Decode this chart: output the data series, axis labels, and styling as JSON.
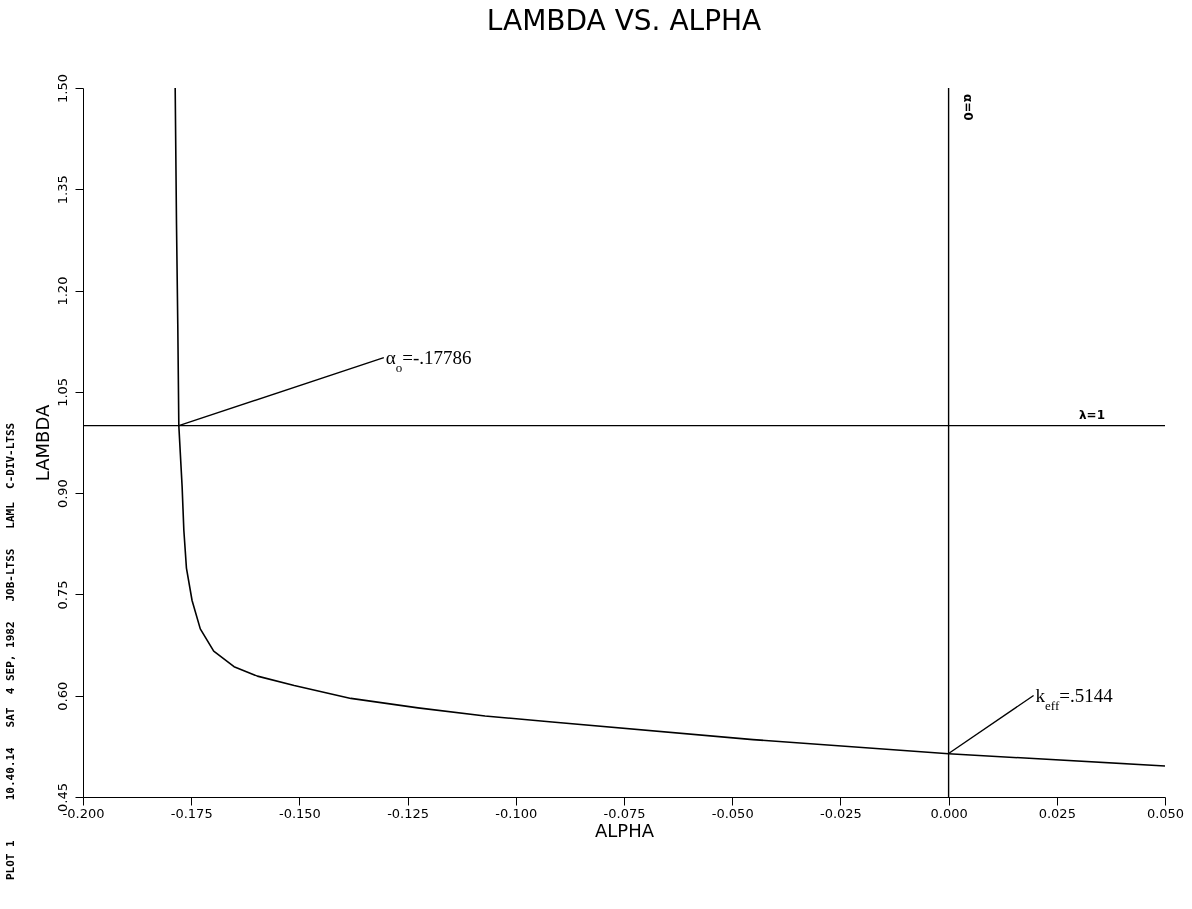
{
  "chart_data": {
    "type": "line",
    "title": "LAMBDA VS. ALPHA",
    "xlabel": "ALPHA",
    "ylabel": "LAMBDA",
    "xlim": [
      -0.2,
      0.05
    ],
    "ylim": [
      0.45,
      1.5
    ],
    "xticks": [
      {
        "value": -0.2,
        "label": "-0.200"
      },
      {
        "value": -0.175,
        "label": "-0.175"
      },
      {
        "value": -0.15,
        "label": "-0.150"
      },
      {
        "value": -0.125,
        "label": "-0.125"
      },
      {
        "value": -0.1,
        "label": "-0.100"
      },
      {
        "value": -0.075,
        "label": "-0.075"
      },
      {
        "value": -0.05,
        "label": "-0.050"
      },
      {
        "value": -0.025,
        "label": "-0.025"
      },
      {
        "value": 0,
        "label": "0.000"
      },
      {
        "value": 0.025,
        "label": "0.025"
      },
      {
        "value": 0.05,
        "label": "0.050"
      }
    ],
    "yticks": [
      0.45,
      {
        "value": 0.6,
        "label": "0.60"
      },
      0.75,
      {
        "value": 0.9,
        "label": "0.90"
      },
      1.05,
      {
        "value": 1.2,
        "label": "1.20"
      },
      1.35,
      {
        "value": 1.5,
        "label": "1.50"
      }
    ],
    "series": [
      {
        "color": "#000000",
        "x": [
          -0.1787,
          -0.1784,
          -0.1781,
          -0.17786,
          -0.1771,
          -0.1767,
          -0.1761,
          -0.1748,
          -0.1729,
          -0.1698,
          -0.1651,
          -0.1597,
          -0.1512,
          -0.1381,
          -0.1226,
          -0.1071,
          -0.0916,
          -0.0452,
          0,
          0.05
        ],
        "values": [
          1.5,
          1.3,
          1.15,
          1.0,
          0.91,
          0.845,
          0.789,
          0.741,
          0.699,
          0.666,
          0.643,
          0.629,
          0.615,
          0.596,
          0.582,
          0.57,
          0.561,
          0.535,
          0.514,
          0.496
        ]
      }
    ],
    "ref_lines": [
      {
        "axis": "x",
        "value": 0,
        "label": "α=0"
      },
      {
        "axis": "y",
        "value": 1,
        "label": "λ=1"
      }
    ],
    "annotations": [
      {
        "text": "α$_{o}$=-.17786",
        "x": -0.17786,
        "y": 1
      },
      {
        "text": "k$_{eff}$=.5144",
        "x": 0,
        "y": 0.5144
      },
      "PLOT 1",
      "10.40.14   SAT  4 SEP, 1982   JOB-LTSS   LAML  C-DIV-LTSS"
    ]
  }
}
